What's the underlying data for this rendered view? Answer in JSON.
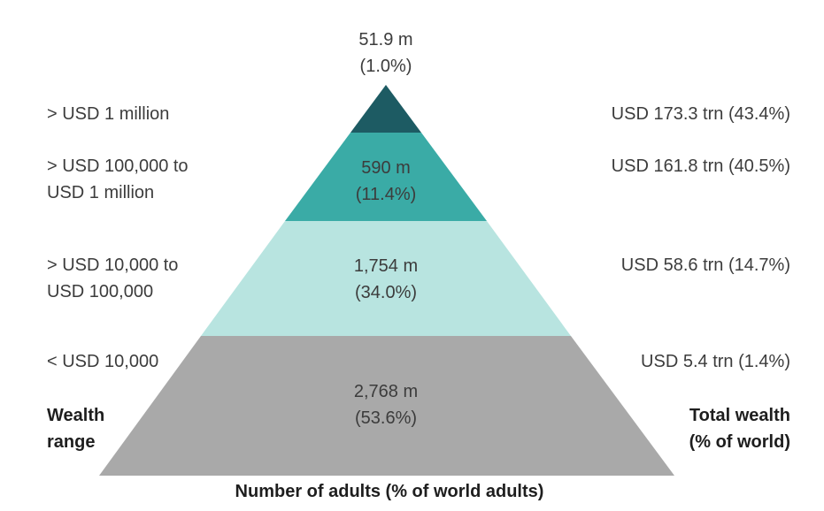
{
  "diagram": {
    "title": "",
    "tiers": [
      {
        "key": "top",
        "wealth_range": [
          "> USD 1 million"
        ],
        "adults": [
          "51.9 m",
          "(1.0%)"
        ],
        "total_wealth": "USD 173.3 trn (43.4%)",
        "color": "#1d5b63"
      },
      {
        "key": "upper",
        "wealth_range": [
          "> USD 100,000 to",
          "USD 1 million"
        ],
        "adults": [
          "590 m",
          "(11.4%)"
        ],
        "total_wealth": "USD 161.8 trn (40.5%)",
        "color": "#3aaba6"
      },
      {
        "key": "middle",
        "wealth_range": [
          "> USD 10,000 to",
          "USD 100,000"
        ],
        "adults": [
          "1,754 m",
          "(34.0%)"
        ],
        "total_wealth": "USD 58.6 trn (14.7%)",
        "color": "#b8e4e0"
      },
      {
        "key": "base",
        "wealth_range": [
          "< USD 10,000"
        ],
        "adults": [
          "2,768 m",
          "(53.6%)"
        ],
        "total_wealth": "USD 5.4 trn (1.4%)",
        "color": "#a9a9a9"
      }
    ],
    "left_heading": [
      "Wealth",
      "range"
    ],
    "right_heading": [
      "Total wealth",
      "(% of world)"
    ],
    "bottom_heading": "Number of adults (% of world adults)"
  }
}
